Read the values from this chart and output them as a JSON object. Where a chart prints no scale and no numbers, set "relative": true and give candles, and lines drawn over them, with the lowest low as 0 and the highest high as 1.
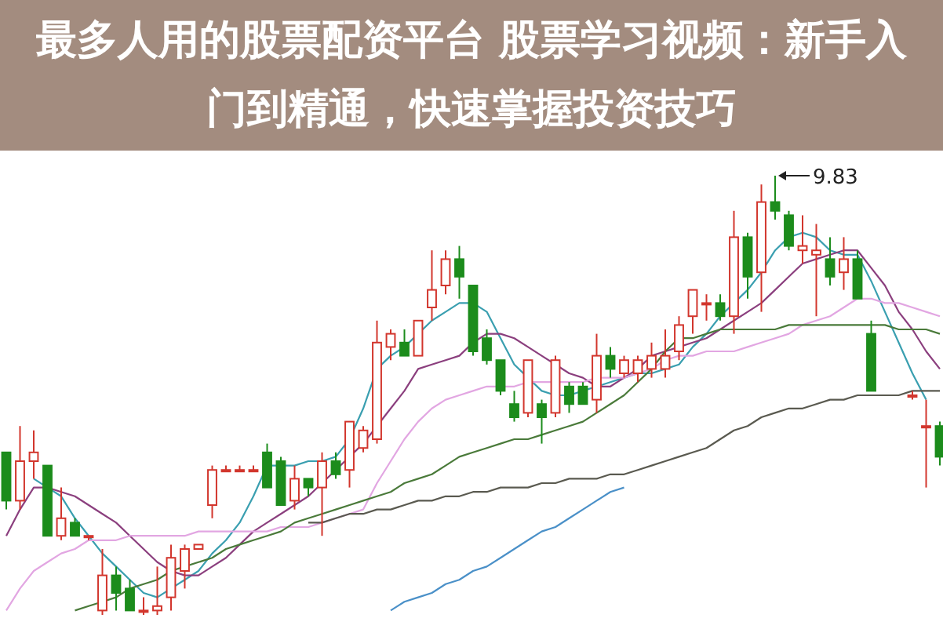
{
  "chart_data": {
    "type": "candlestick",
    "title": "最多人用的股票配资平台 股票学习视频：新手入门到精通，快速掌握投资技巧",
    "relative": true,
    "categories": [
      null,
      null,
      null,
      null,
      null,
      null,
      null,
      null,
      null,
      null,
      null,
      null,
      null,
      null,
      null,
      null,
      null,
      null,
      null,
      null,
      null,
      null,
      null,
      null,
      null,
      null,
      null,
      null,
      null,
      null,
      null,
      null,
      null,
      null,
      null,
      null,
      null,
      null,
      null,
      null,
      null,
      null,
      null,
      null,
      null,
      null,
      null,
      null,
      null,
      null,
      null,
      null,
      null,
      null,
      null,
      null,
      null,
      null,
      null,
      null,
      null,
      null,
      null,
      null,
      null,
      null,
      null,
      null,
      null
    ],
    "ohlc": [
      [
        0.37,
        0.37,
        0.24,
        0.26
      ],
      [
        0.26,
        0.43,
        0.24,
        0.35
      ],
      [
        0.35,
        0.42,
        0.31,
        0.37
      ],
      [
        0.34,
        0.34,
        0.18,
        0.18
      ],
      [
        0.18,
        0.29,
        0.17,
        0.22
      ],
      [
        0.21,
        0.22,
        0.18,
        0.18
      ],
      [
        0.18,
        0.18,
        0.17,
        0.18
      ],
      [
        0.01,
        0.15,
        0,
        0.09
      ],
      [
        0.09,
        0.11,
        0.01,
        0.05
      ],
      [
        0.06,
        0.08,
        0.01,
        0.01
      ],
      [
        0.01,
        0.04,
        0,
        0.01
      ],
      [
        0.01,
        0.11,
        0,
        0.02
      ],
      [
        0.04,
        0.16,
        0.01,
        0.13
      ],
      [
        0.1,
        0.16,
        0.06,
        0.15
      ],
      [
        0.15,
        0.16,
        0.15,
        0.16
      ],
      [
        0.25,
        0.34,
        0.22,
        0.33
      ],
      [
        0.33,
        0.34,
        0.33,
        0.33
      ],
      [
        0.33,
        0.34,
        0.33,
        0.33
      ],
      [
        0.33,
        0.34,
        0.33,
        0.33
      ],
      [
        0.37,
        0.39,
        0.29,
        0.29
      ],
      [
        0.35,
        0.36,
        0.25,
        0.25
      ],
      [
        0.26,
        0.34,
        0.24,
        0.31
      ],
      [
        0.31,
        0.31,
        0.27,
        0.29
      ],
      [
        0.29,
        0.37,
        0.18,
        0.35
      ],
      [
        0.35,
        0.37,
        0.31,
        0.32
      ],
      [
        0.33,
        0.44,
        0.29,
        0.44
      ],
      [
        0.38,
        0.43,
        0.37,
        0.42
      ],
      [
        0.4,
        0.67,
        0.39,
        0.62
      ],
      [
        0.61,
        0.65,
        0.58,
        0.64
      ],
      [
        0.62,
        0.65,
        0.59,
        0.59
      ],
      [
        0.59,
        0.67,
        0.59,
        0.67
      ],
      [
        0.7,
        0.83,
        0.67,
        0.74
      ],
      [
        0.75,
        0.83,
        0.73,
        0.81
      ],
      [
        0.81,
        0.84,
        0.72,
        0.77
      ],
      [
        0.75,
        0.75,
        0.59,
        0.6
      ],
      [
        0.63,
        0.65,
        0.57,
        0.58
      ],
      [
        0.58,
        0.58,
        0.5,
        0.51
      ],
      [
        0.48,
        0.51,
        0.44,
        0.45
      ],
      [
        0.46,
        0.58,
        0.45,
        0.58
      ],
      [
        0.48,
        0.49,
        0.39,
        0.45
      ],
      [
        0.46,
        0.59,
        0.45,
        0.58
      ],
      [
        0.52,
        0.53,
        0.46,
        0.48
      ],
      [
        0.52,
        0.53,
        0.48,
        0.48
      ],
      [
        0.49,
        0.64,
        0.46,
        0.59
      ],
      [
        0.59,
        0.61,
        0.54,
        0.56
      ],
      [
        0.55,
        0.59,
        0.54,
        0.58
      ],
      [
        0.55,
        0.59,
        0.53,
        0.58
      ],
      [
        0.56,
        0.62,
        0.54,
        0.59
      ],
      [
        0.56,
        0.65,
        0.54,
        0.59
      ],
      [
        0.6,
        0.68,
        0.58,
        0.66
      ],
      [
        0.68,
        0.74,
        0.64,
        0.74
      ],
      [
        0.71,
        0.73,
        0.67,
        0.71
      ],
      [
        0.71,
        0.73,
        0.67,
        0.68
      ],
      [
        0.68,
        0.92,
        0.64,
        0.86
      ],
      [
        0.86,
        0.87,
        0.72,
        0.77
      ],
      [
        0.78,
        0.98,
        0.69,
        0.94
      ],
      [
        0.94,
        1.0,
        0.9,
        0.92
      ],
      [
        0.91,
        0.92,
        0.83,
        0.84
      ],
      [
        0.83,
        0.91,
        0.8,
        0.84
      ],
      [
        0.82,
        0.89,
        0.68,
        0.83
      ],
      [
        0.81,
        0.86,
        0.75,
        0.77
      ],
      [
        0.78,
        0.86,
        0.74,
        0.81
      ],
      [
        0.81,
        0.83,
        0.72,
        0.72
      ],
      [
        0.64,
        0.67,
        0.51,
        0.51
      ],
      null,
      null,
      [
        0.5,
        0.51,
        0.49,
        0.5
      ],
      [
        0.43,
        0.49,
        0.29,
        0.43
      ],
      [
        0.43,
        0.44,
        0.34,
        0.36
      ]
    ],
    "series": [
      {
        "type": "line",
        "color": "#3a9fb0",
        "values": [
          null,
          null,
          0.31,
          0.29,
          0.27,
          0.22,
          0.18,
          0.14,
          0.11,
          0.08,
          0.05,
          0.04,
          0.06,
          0.08,
          0.1,
          0.14,
          0.17,
          0.21,
          0.27,
          0.34,
          0.34,
          0.34,
          0.35,
          0.35,
          0.36,
          0.4,
          0.47,
          0.56,
          0.59,
          0.61,
          0.64,
          0.67,
          0.69,
          0.71,
          0.71,
          0.69,
          0.63,
          0.57,
          0.54,
          0.51,
          0.5,
          0.5,
          0.51,
          0.52,
          0.53,
          0.54,
          0.55,
          0.55,
          0.56,
          0.57,
          0.61,
          0.64,
          0.68,
          0.71,
          0.74,
          0.78,
          0.83,
          0.86,
          0.87,
          0.86,
          0.83,
          0.82,
          0.82,
          0.76,
          0.69,
          0.62,
          0.55,
          0.49,
          null
        ]
      },
      {
        "type": "line",
        "color": "#8b3f7e",
        "values": [
          0.18,
          0.24,
          0.29,
          0.29,
          0.28,
          0.27,
          0.25,
          0.23,
          0.21,
          0.18,
          0.15,
          0.12,
          0.1,
          0.09,
          0.09,
          0.11,
          0.13,
          0.16,
          0.19,
          0.21,
          0.23,
          0.25,
          0.27,
          0.3,
          0.33,
          0.36,
          0.39,
          0.43,
          0.47,
          0.51,
          0.56,
          0.57,
          0.58,
          0.59,
          0.62,
          0.64,
          0.64,
          0.63,
          0.61,
          0.59,
          0.57,
          0.55,
          0.54,
          0.52,
          0.52,
          0.54,
          0.56,
          0.59,
          0.6,
          0.61,
          0.62,
          0.63,
          0.65,
          0.67,
          0.69,
          0.71,
          0.74,
          0.77,
          0.8,
          0.81,
          0.82,
          0.83,
          0.83,
          0.79,
          0.75,
          0.69,
          0.65,
          0.6,
          0.56
        ]
      },
      {
        "type": "line",
        "color": "#e2a6e2",
        "values": [
          0.01,
          0.06,
          0.1,
          0.12,
          0.14,
          0.15,
          0.17,
          0.17,
          0.17,
          0.18,
          0.18,
          0.18,
          0.18,
          0.18,
          0.19,
          0.19,
          0.19,
          0.19,
          0.19,
          0.19,
          0.2,
          0.2,
          0.2,
          0.21,
          0.22,
          0.23,
          0.24,
          0.3,
          0.35,
          0.4,
          0.44,
          0.47,
          0.49,
          0.5,
          0.51,
          0.52,
          0.52,
          0.52,
          0.53,
          0.53,
          0.53,
          0.53,
          0.53,
          0.54,
          0.54,
          0.54,
          0.55,
          0.56,
          0.58,
          0.59,
          0.59,
          0.6,
          0.6,
          0.6,
          0.61,
          0.62,
          0.63,
          0.64,
          0.66,
          0.67,
          0.68,
          0.7,
          0.72,
          0.72,
          0.71,
          0.71,
          0.7,
          0.69,
          0.68
        ]
      },
      {
        "type": "line",
        "color": "#4a7a3a",
        "values": [
          null,
          null,
          null,
          null,
          null,
          0.01,
          0.02,
          0.03,
          0.04,
          0.06,
          0.07,
          0.08,
          0.1,
          0.11,
          0.12,
          0.13,
          0.15,
          0.16,
          0.17,
          0.18,
          0.19,
          0.21,
          0.22,
          0.23,
          0.24,
          0.25,
          0.26,
          0.27,
          0.28,
          0.3,
          0.31,
          0.32,
          0.34,
          0.36,
          0.37,
          0.38,
          0.39,
          0.4,
          0.4,
          0.41,
          0.42,
          0.43,
          0.44,
          0.46,
          0.48,
          0.5,
          0.53,
          0.56,
          0.6,
          0.63,
          0.63,
          0.64,
          0.65,
          0.65,
          0.65,
          0.65,
          0.65,
          0.66,
          0.66,
          0.66,
          0.66,
          0.66,
          0.66,
          0.66,
          0.66,
          0.65,
          0.65,
          0.65,
          0.64
        ]
      },
      {
        "type": "line",
        "color": "#5a5a50",
        "values": [
          null,
          null,
          null,
          null,
          null,
          null,
          null,
          null,
          null,
          null,
          null,
          null,
          null,
          null,
          null,
          null,
          null,
          null,
          null,
          null,
          null,
          null,
          0.21,
          0.21,
          0.22,
          0.23,
          0.23,
          0.24,
          0.24,
          0.25,
          0.26,
          0.26,
          0.27,
          0.27,
          0.28,
          0.28,
          0.29,
          0.29,
          0.29,
          0.3,
          0.3,
          0.31,
          0.31,
          0.31,
          0.32,
          0.32,
          0.33,
          0.34,
          0.35,
          0.36,
          0.37,
          0.38,
          0.4,
          0.42,
          0.43,
          0.45,
          0.46,
          0.47,
          0.47,
          0.48,
          0.49,
          0.49,
          0.5,
          0.5,
          0.5,
          0.5,
          0.51,
          0.51,
          0.51
        ]
      },
      {
        "type": "line",
        "color": "#4a90c8",
        "values": [
          null,
          null,
          null,
          null,
          null,
          null,
          null,
          null,
          null,
          null,
          null,
          null,
          null,
          null,
          null,
          null,
          null,
          null,
          null,
          null,
          null,
          null,
          null,
          null,
          null,
          null,
          null,
          null,
          0.01,
          0.03,
          0.04,
          0.05,
          0.07,
          0.08,
          0.1,
          0.11,
          0.13,
          0.15,
          0.17,
          0.19,
          0.2,
          0.22,
          0.24,
          0.26,
          0.28,
          0.29,
          null,
          null,
          null,
          null,
          null,
          null,
          null,
          null,
          null,
          null,
          null,
          null,
          null,
          null,
          null,
          null,
          null,
          null,
          null,
          null,
          null,
          null,
          null
        ]
      }
    ],
    "annotations": [
      "9.83"
    ]
  }
}
